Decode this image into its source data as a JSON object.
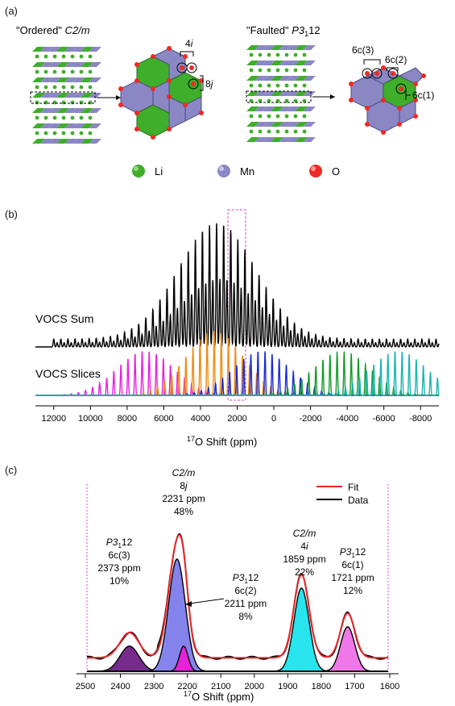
{
  "panel_a": {
    "label": "(a)",
    "ordered_title_pre": "\"Ordered\"",
    "ordered_title_sg": "C2/m",
    "faulted_title_pre": "\"Faulted\"",
    "faulted_title_sg": "P3",
    "faulted_title_sub": "1",
    "faulted_title_post": "12",
    "site_4i": "4i",
    "site_8j": "8j",
    "site_6c3": "6c(3)",
    "site_6c2": "6c(2)",
    "site_6c1": "6c(1)",
    "legend": [
      {
        "label": "Li",
        "color": "#3fae2a"
      },
      {
        "label": "Mn",
        "color": "#8a87c4"
      },
      {
        "label": "O",
        "color": "#ee2a24"
      }
    ]
  },
  "panel_b": {
    "label": "(b)",
    "sum_label": "VOCS Sum",
    "slices_label": "VOCS Slices",
    "xlabel_sup": "17",
    "xlabel": "O Shift (ppm)",
    "xticks": [
      "12000",
      "10000",
      "8000",
      "6000",
      "4000",
      "2000",
      "0",
      "-2000",
      "-4000",
      "-6000",
      "-8000"
    ],
    "slice_colors": [
      "#e81ee0",
      "#f08a12",
      "#1c29d8",
      "#159b2a",
      "#19b5b0"
    ],
    "sum_color": "#000000",
    "box_color": "#e040d8"
  },
  "panel_c": {
    "label": "(c)",
    "legend_fit": "Fit",
    "legend_data": "Data",
    "xlabel_sup": "17",
    "xlabel": "O Shift (ppm)",
    "xticks": [
      "2500",
      "2400",
      "2300",
      "2200",
      "2100",
      "2000",
      "1900",
      "1800",
      "1700",
      "1600"
    ],
    "peaks": [
      {
        "sg_pre": "P3",
        "sg_sub": "1",
        "sg_post": "12",
        "site": "6c(3)",
        "shift": "2373 ppm",
        "pct": "10%",
        "color": "#6a1a80"
      },
      {
        "sg_pre": "C2/m",
        "sg_sub": "",
        "sg_post": "",
        "site": "8j",
        "shift": "2231 ppm",
        "pct": "48%",
        "color": "#7a78ea"
      },
      {
        "sg_pre": "P3",
        "sg_sub": "1",
        "sg_post": "12",
        "site": "6c(2)",
        "shift": "2211 ppm",
        "pct": "8%",
        "color": "#f01ad8"
      },
      {
        "sg_pre": "C2/m",
        "sg_sub": "",
        "sg_post": "",
        "site": "4i",
        "shift": "1859 ppm",
        "pct": "22%",
        "color": "#16e2ea"
      },
      {
        "sg_pre": "P3",
        "sg_sub": "1",
        "sg_post": "12",
        "site": "6c(1)",
        "shift": "1721 ppm",
        "pct": "12%",
        "color": "#f06ce6"
      }
    ],
    "fit_color": "#e8262a",
    "data_color": "#000000"
  },
  "chart_data": [
    {
      "type": "line",
      "title": "",
      "xlabel": "17O Shift (ppm)",
      "ylabel": "",
      "xlim": [
        13000,
        -9000
      ],
      "series": [
        {
          "name": "VOCS Sum",
          "description_points": [
            [
              3100,
              1.0
            ],
            [
              2230,
              0.6
            ],
            [
              3900,
              0.5
            ],
            [
              1500,
              0.45
            ]
          ]
        },
        {
          "name": "VOCS Slices"
        }
      ]
    },
    {
      "type": "area",
      "title": "",
      "xlabel": "17O Shift (ppm)",
      "ylabel": "",
      "xlim": [
        2500,
        1600
      ],
      "series": [
        {
          "name": "Fit"
        },
        {
          "name": "Data"
        }
      ],
      "components": [
        {
          "center": 2373,
          "percent": 10,
          "height": 0.13
        },
        {
          "center": 2231,
          "percent": 48,
          "height": 0.58
        },
        {
          "center": 2211,
          "percent": 8,
          "height": 0.13
        },
        {
          "center": 1859,
          "percent": 22,
          "height": 0.43
        },
        {
          "center": 1721,
          "percent": 12,
          "height": 0.23
        }
      ]
    }
  ]
}
